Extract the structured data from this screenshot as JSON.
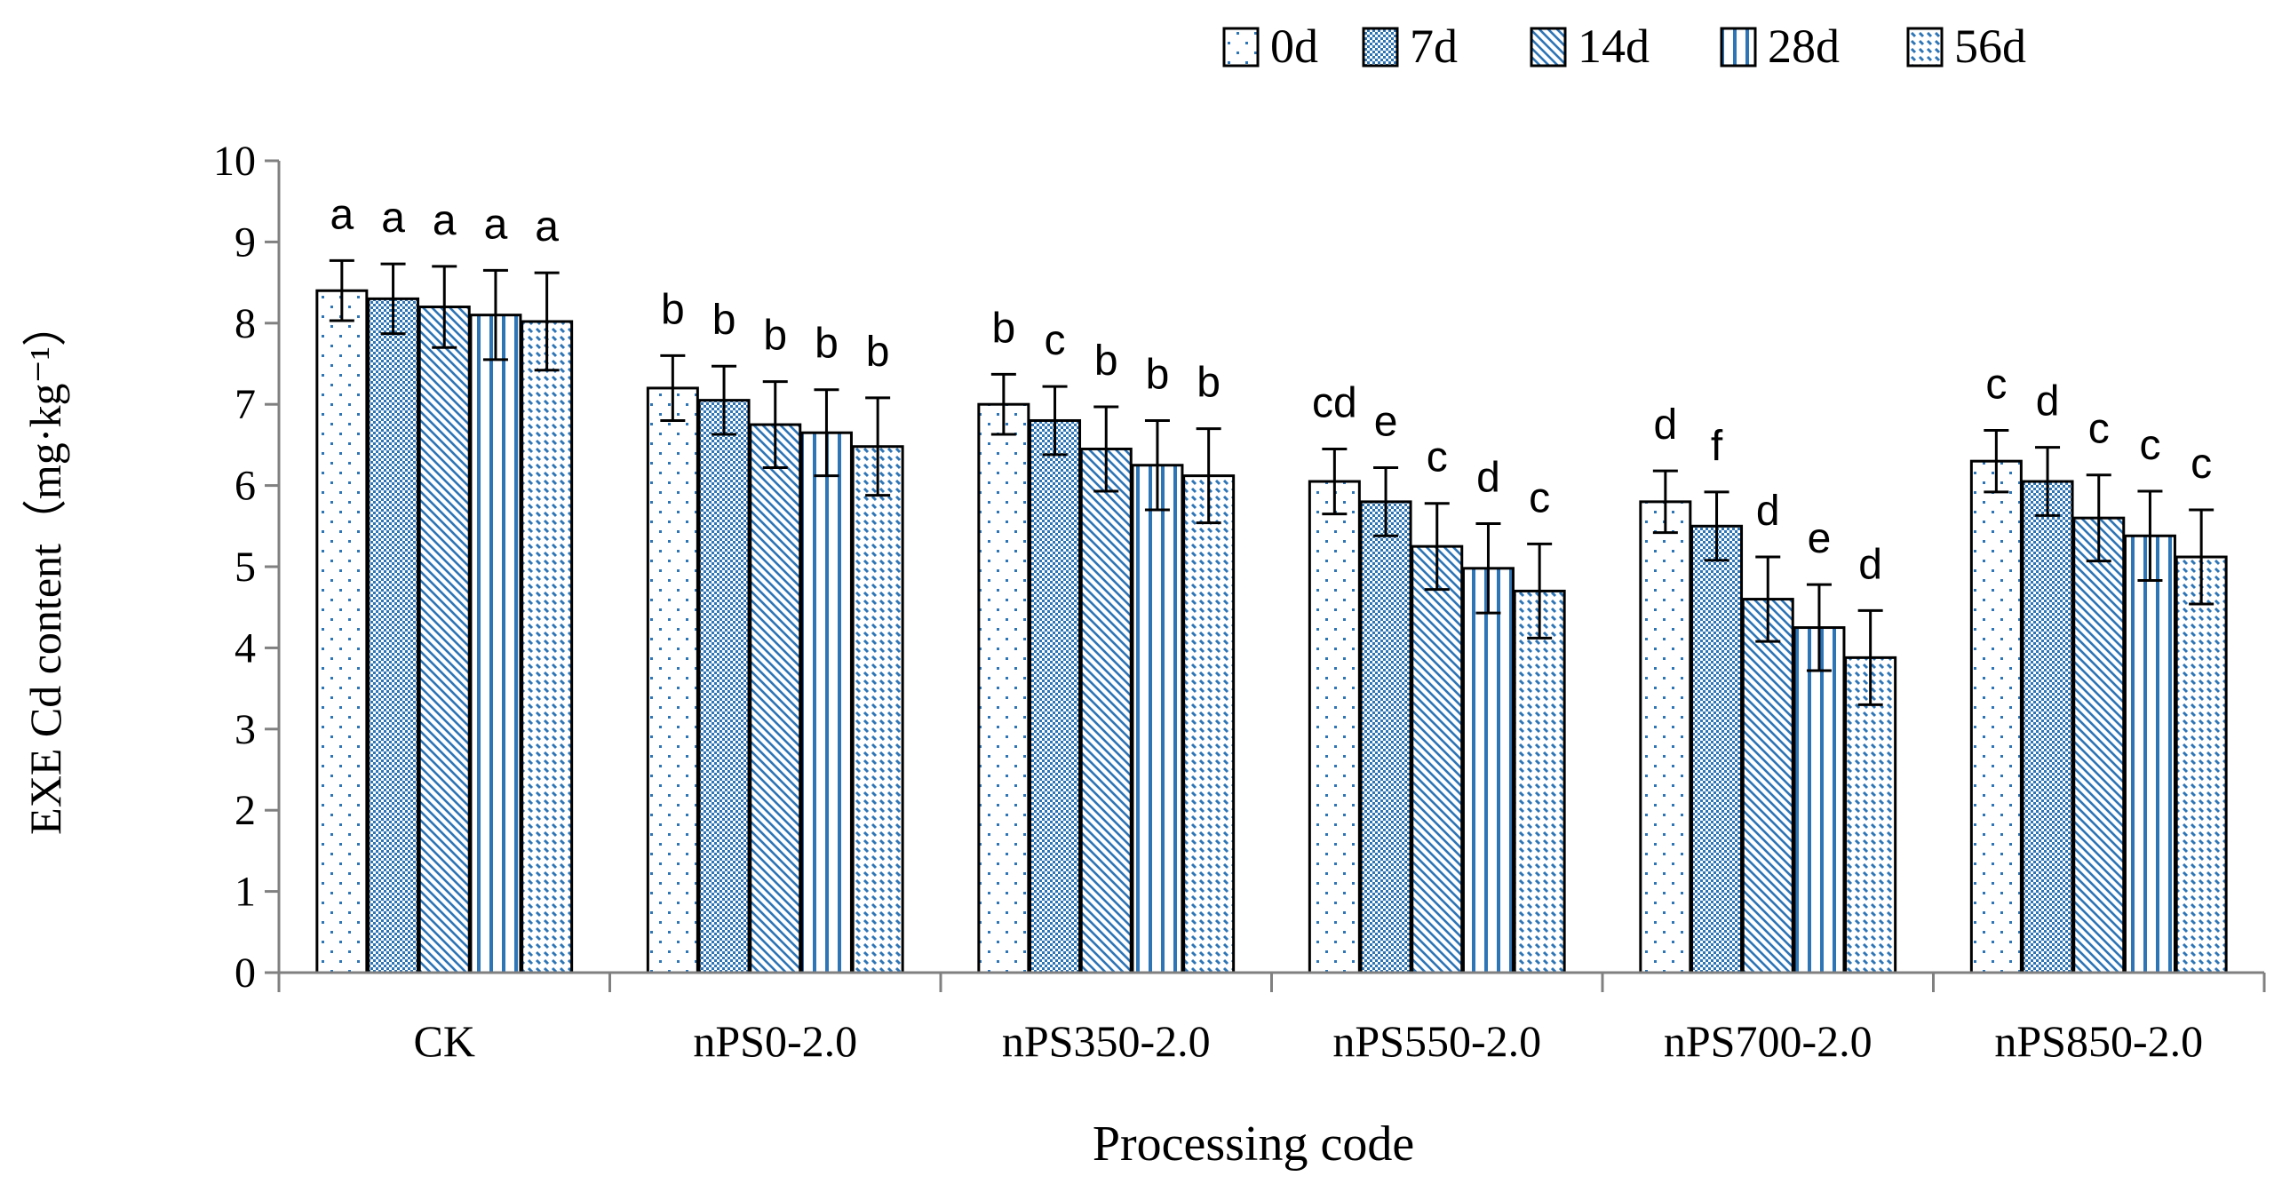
{
  "chart_data": {
    "type": "bar",
    "title": "",
    "xlabel": "Processing code",
    "ylabel": "EXE Cd content（mg·kg⁻¹）",
    "ylim": [
      0,
      10
    ],
    "yticks": [
      0,
      1,
      2,
      3,
      4,
      5,
      6,
      7,
      8,
      9,
      10
    ],
    "grid": false,
    "legend_position": "top-right",
    "categories": [
      "CK",
      "nPS0-2.0",
      "nPS350-2.0",
      "nPS550-2.0",
      "nPS700-2.0",
      "nPS850-2.0"
    ],
    "series": [
      {
        "name": "0d",
        "pattern": "dots",
        "values": [
          8.4,
          7.2,
          7.0,
          6.05,
          5.8,
          6.3
        ],
        "errors": [
          0.37,
          0.4,
          0.37,
          0.4,
          0.38,
          0.38
        ],
        "labels": [
          "a",
          "b",
          "b",
          "cd",
          "d",
          "c"
        ]
      },
      {
        "name": "7d",
        "pattern": "checker",
        "values": [
          8.3,
          7.05,
          6.8,
          5.8,
          5.5,
          6.05
        ],
        "errors": [
          0.43,
          0.42,
          0.42,
          0.42,
          0.42,
          0.42
        ],
        "labels": [
          "a",
          "b",
          "c",
          "e",
          "f",
          "d"
        ]
      },
      {
        "name": "14d",
        "pattern": "diagonal-dense",
        "values": [
          8.2,
          6.75,
          6.45,
          5.25,
          4.6,
          5.6
        ],
        "errors": [
          0.5,
          0.53,
          0.52,
          0.53,
          0.52,
          0.53
        ],
        "labels": [
          "a",
          "b",
          "b",
          "c",
          "d",
          "c"
        ]
      },
      {
        "name": "28d",
        "pattern": "vertical-lines",
        "values": [
          8.1,
          6.65,
          6.25,
          4.98,
          4.25,
          5.38
        ],
        "errors": [
          0.55,
          0.53,
          0.55,
          0.55,
          0.53,
          0.55
        ],
        "labels": [
          "a",
          "b",
          "b",
          "d",
          "e",
          "c"
        ]
      },
      {
        "name": "56d",
        "pattern": "diagonal-dashed",
        "values": [
          8.02,
          6.48,
          6.12,
          4.7,
          3.88,
          5.12
        ],
        "errors": [
          0.6,
          0.6,
          0.58,
          0.58,
          0.58,
          0.58
        ],
        "labels": [
          "a",
          "b",
          "b",
          "c",
          "d",
          "c"
        ]
      }
    ],
    "colors": {
      "accent": "#2e75b6",
      "fill": "#ffffff",
      "stroke": "#000000",
      "axis": "#808080"
    }
  }
}
